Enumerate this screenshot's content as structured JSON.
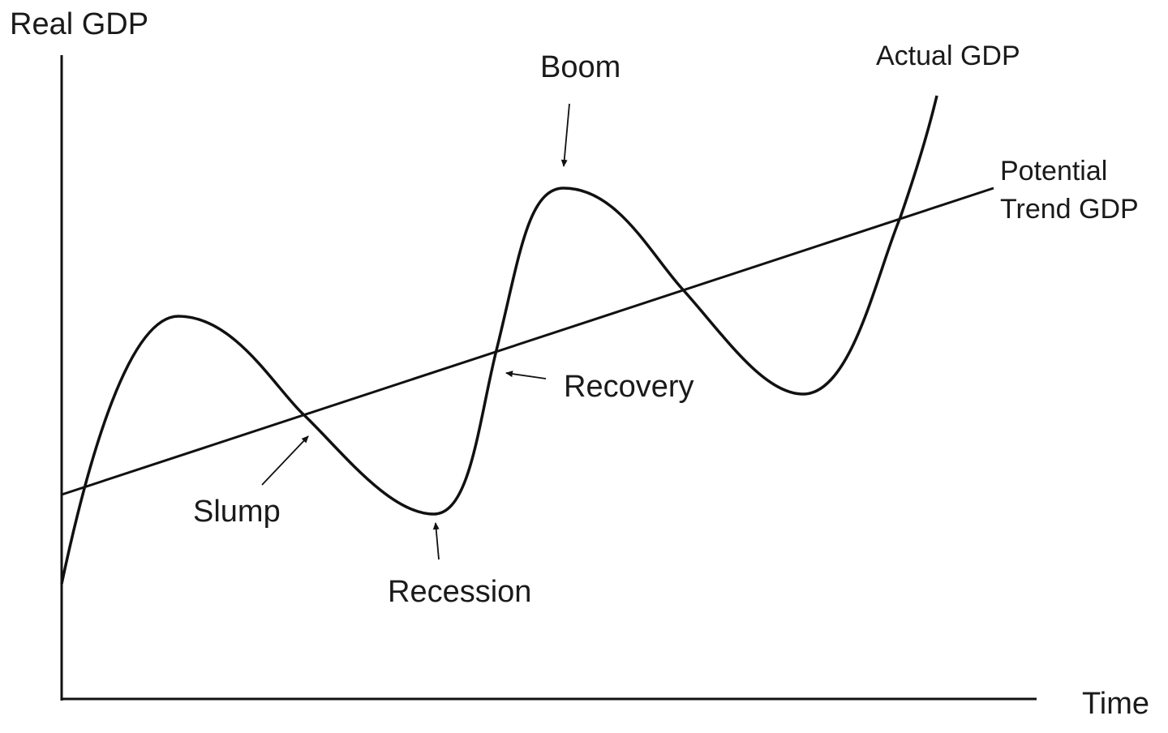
{
  "axes": {
    "y_label": "Real GDP",
    "x_label": "Time"
  },
  "series": {
    "actual": "Actual GDP",
    "trend_line1": "Potential",
    "trend_line2": "Trend GDP"
  },
  "annotations": {
    "boom": "Boom",
    "recovery": "Recovery",
    "slump": "Slump",
    "recession": "Recession"
  },
  "colors": {
    "line": "#111111",
    "background": "#ffffff"
  }
}
